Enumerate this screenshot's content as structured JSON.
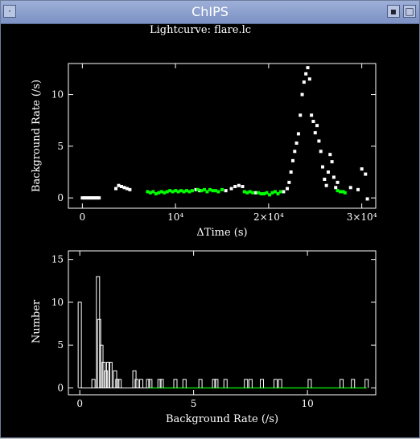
{
  "window": {
    "title": "ChIPS",
    "icons": {
      "menu": "window-menu-icon",
      "minimize": "minimize-icon",
      "maximize": "maximize-icon"
    }
  },
  "plot": {
    "title": "Lightcurve: flare.lc"
  },
  "colors": {
    "background": "#000000",
    "axes": "#ffffff",
    "points_default": "#ffffff",
    "points_good": "#00ff00",
    "titlebar": "#8a9ecf"
  },
  "chart_data": [
    {
      "type": "scatter",
      "xlabel": "ΔTime (s)",
      "ylabel": "Background Rate (/s)",
      "xlim": [
        -1500,
        31500
      ],
      "ylim": [
        -1,
        13
      ],
      "x_ticks": [
        {
          "value": 0,
          "label": "0"
        },
        {
          "value": 10000,
          "label": "10⁴"
        },
        {
          "value": 20000,
          "label": "2×10⁴"
        },
        {
          "value": 30000,
          "label": "3×10⁴"
        }
      ],
      "y_ticks": [
        {
          "value": 0,
          "label": "0"
        },
        {
          "value": 5,
          "label": "5"
        },
        {
          "value": 10,
          "label": "10"
        }
      ],
      "series": [
        {
          "color": "white",
          "x": [
            0,
            200,
            400,
            600,
            800,
            1000,
            1200,
            1400,
            1600,
            1800,
            3600,
            3900,
            4200,
            4500,
            4800,
            5100,
            12200,
            12600,
            15400,
            16000,
            16400,
            16800,
            17200,
            18600,
            21600,
            22000,
            22200,
            22400,
            22600,
            22800,
            23000,
            23200,
            23400,
            23600,
            23800,
            24000,
            24200,
            24400,
            24600,
            24800,
            25000,
            25200,
            25400,
            25600,
            25800,
            26000,
            26200,
            26400,
            26600,
            26800,
            27000,
            27200,
            27400,
            28800,
            29600,
            30000,
            30400,
            30600
          ],
          "y": [
            0,
            0,
            0,
            0,
            0,
            0,
            0,
            0,
            0,
            0,
            0.9,
            1.2,
            1.1,
            1.0,
            0.9,
            0.8,
            0.8,
            0.7,
            0.7,
            0.9,
            1.1,
            1.2,
            1.1,
            0.5,
            0.6,
            0.9,
            1.5,
            2.5,
            3.6,
            4.5,
            5.3,
            6.2,
            8.0,
            10.0,
            11.2,
            12.0,
            12.6,
            11.5,
            8.0,
            7.4,
            6.3,
            7.0,
            5.5,
            4.5,
            3.0,
            1.8,
            1.2,
            2.5,
            4.2,
            3.5,
            2.0,
            1.0,
            1.5,
            1.0,
            0.8,
            2.8,
            2.3,
            -0.1
          ]
        },
        {
          "color": "green",
          "x": [
            7000,
            7300,
            7600,
            7900,
            8200,
            8500,
            8800,
            9100,
            9400,
            9700,
            10000,
            10300,
            10600,
            10900,
            11200,
            11500,
            11800,
            12400,
            12800,
            13100,
            13400,
            13700,
            14000,
            14300,
            14600,
            15000,
            17400,
            17700,
            18000,
            18300,
            18900,
            19200,
            19500,
            19800,
            20100,
            20400,
            20700,
            21000,
            21300,
            27400,
            27700,
            28000,
            28200
          ],
          "y": [
            0.6,
            0.5,
            0.6,
            0.4,
            0.5,
            0.6,
            0.5,
            0.6,
            0.7,
            0.6,
            0.7,
            0.6,
            0.7,
            0.6,
            0.7,
            0.6,
            0.7,
            0.8,
            0.7,
            0.8,
            0.6,
            0.8,
            0.7,
            0.7,
            0.6,
            0.8,
            0.6,
            0.5,
            0.6,
            0.5,
            0.5,
            0.4,
            0.4,
            0.5,
            0.3,
            0.5,
            0.6,
            0.4,
            0.6,
            0.7,
            0.6,
            0.6,
            0.5
          ]
        }
      ]
    },
    {
      "type": "bar",
      "subtype": "histogram-step",
      "xlabel": "Background Rate (/s)",
      "ylabel": "Number",
      "xlim": [
        -0.5,
        13.0
      ],
      "ylim": [
        -0.8,
        16
      ],
      "x_ticks": [
        {
          "value": 0,
          "label": "0"
        },
        {
          "value": 5,
          "label": "5"
        },
        {
          "value": 10,
          "label": "10"
        }
      ],
      "y_ticks": [
        {
          "value": 0,
          "label": "0"
        },
        {
          "value": 5,
          "label": "5"
        },
        {
          "value": 10,
          "label": "10"
        },
        {
          "value": 15,
          "label": "15"
        }
      ],
      "bins": [
        {
          "x": 0.0,
          "n": 10
        },
        {
          "x": 0.6,
          "n": 1
        },
        {
          "x": 0.8,
          "n": 13
        },
        {
          "x": 0.85,
          "n": 8
        },
        {
          "x": 0.95,
          "n": 5
        },
        {
          "x": 1.05,
          "n": 3
        },
        {
          "x": 1.15,
          "n": 2
        },
        {
          "x": 1.25,
          "n": 3
        },
        {
          "x": 1.35,
          "n": 3
        },
        {
          "x": 1.55,
          "n": 2
        },
        {
          "x": 1.65,
          "n": 1
        },
        {
          "x": 1.75,
          "n": 1
        },
        {
          "x": 2.4,
          "n": 2
        },
        {
          "x": 2.5,
          "n": 1
        },
        {
          "x": 2.7,
          "n": 1
        },
        {
          "x": 3.0,
          "n": 1
        },
        {
          "x": 3.1,
          "n": 1
        },
        {
          "x": 3.5,
          "n": 1
        },
        {
          "x": 3.6,
          "n": 1
        },
        {
          "x": 4.2,
          "n": 1
        },
        {
          "x": 4.6,
          "n": 1
        },
        {
          "x": 5.3,
          "n": 1
        },
        {
          "x": 5.9,
          "n": 1
        },
        {
          "x": 6.0,
          "n": 1
        },
        {
          "x": 6.4,
          "n": 1
        },
        {
          "x": 7.3,
          "n": 1
        },
        {
          "x": 7.5,
          "n": 1
        },
        {
          "x": 8.0,
          "n": 1
        },
        {
          "x": 8.6,
          "n": 1
        },
        {
          "x": 8.8,
          "n": 1
        },
        {
          "x": 10.1,
          "n": 1
        },
        {
          "x": 11.5,
          "n": 1
        },
        {
          "x": 12.0,
          "n": 1
        },
        {
          "x": 12.6,
          "n": 1
        }
      ],
      "baseline": {
        "color": "green",
        "from": 3.0,
        "to": 12.6
      }
    }
  ]
}
